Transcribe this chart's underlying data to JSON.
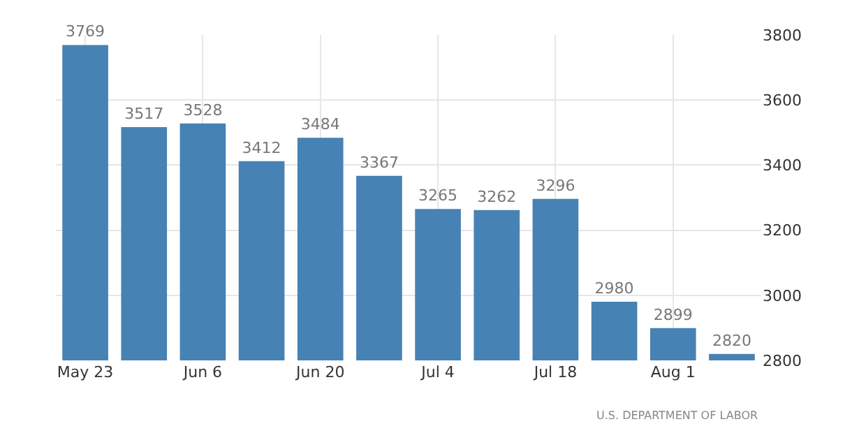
{
  "chart_data": {
    "type": "bar",
    "categories": [
      "May 23",
      null,
      "Jun 6",
      null,
      "Jun 20",
      null,
      "Jul 4",
      null,
      "Jul 18",
      null,
      "Aug 1",
      null
    ],
    "values": [
      3769,
      3517,
      3528,
      3412,
      3484,
      3367,
      3265,
      3262,
      3296,
      2980,
      2899,
      2820
    ],
    "color": "#4682b4",
    "ylim": [
      2800,
      3800
    ],
    "yticks": [
      2800,
      3000,
      3200,
      3400,
      3600,
      3800
    ],
    "grid": true,
    "data_labels": true,
    "annotations": [
      "U.S. DEPARTMENT OF LABOR"
    ]
  }
}
